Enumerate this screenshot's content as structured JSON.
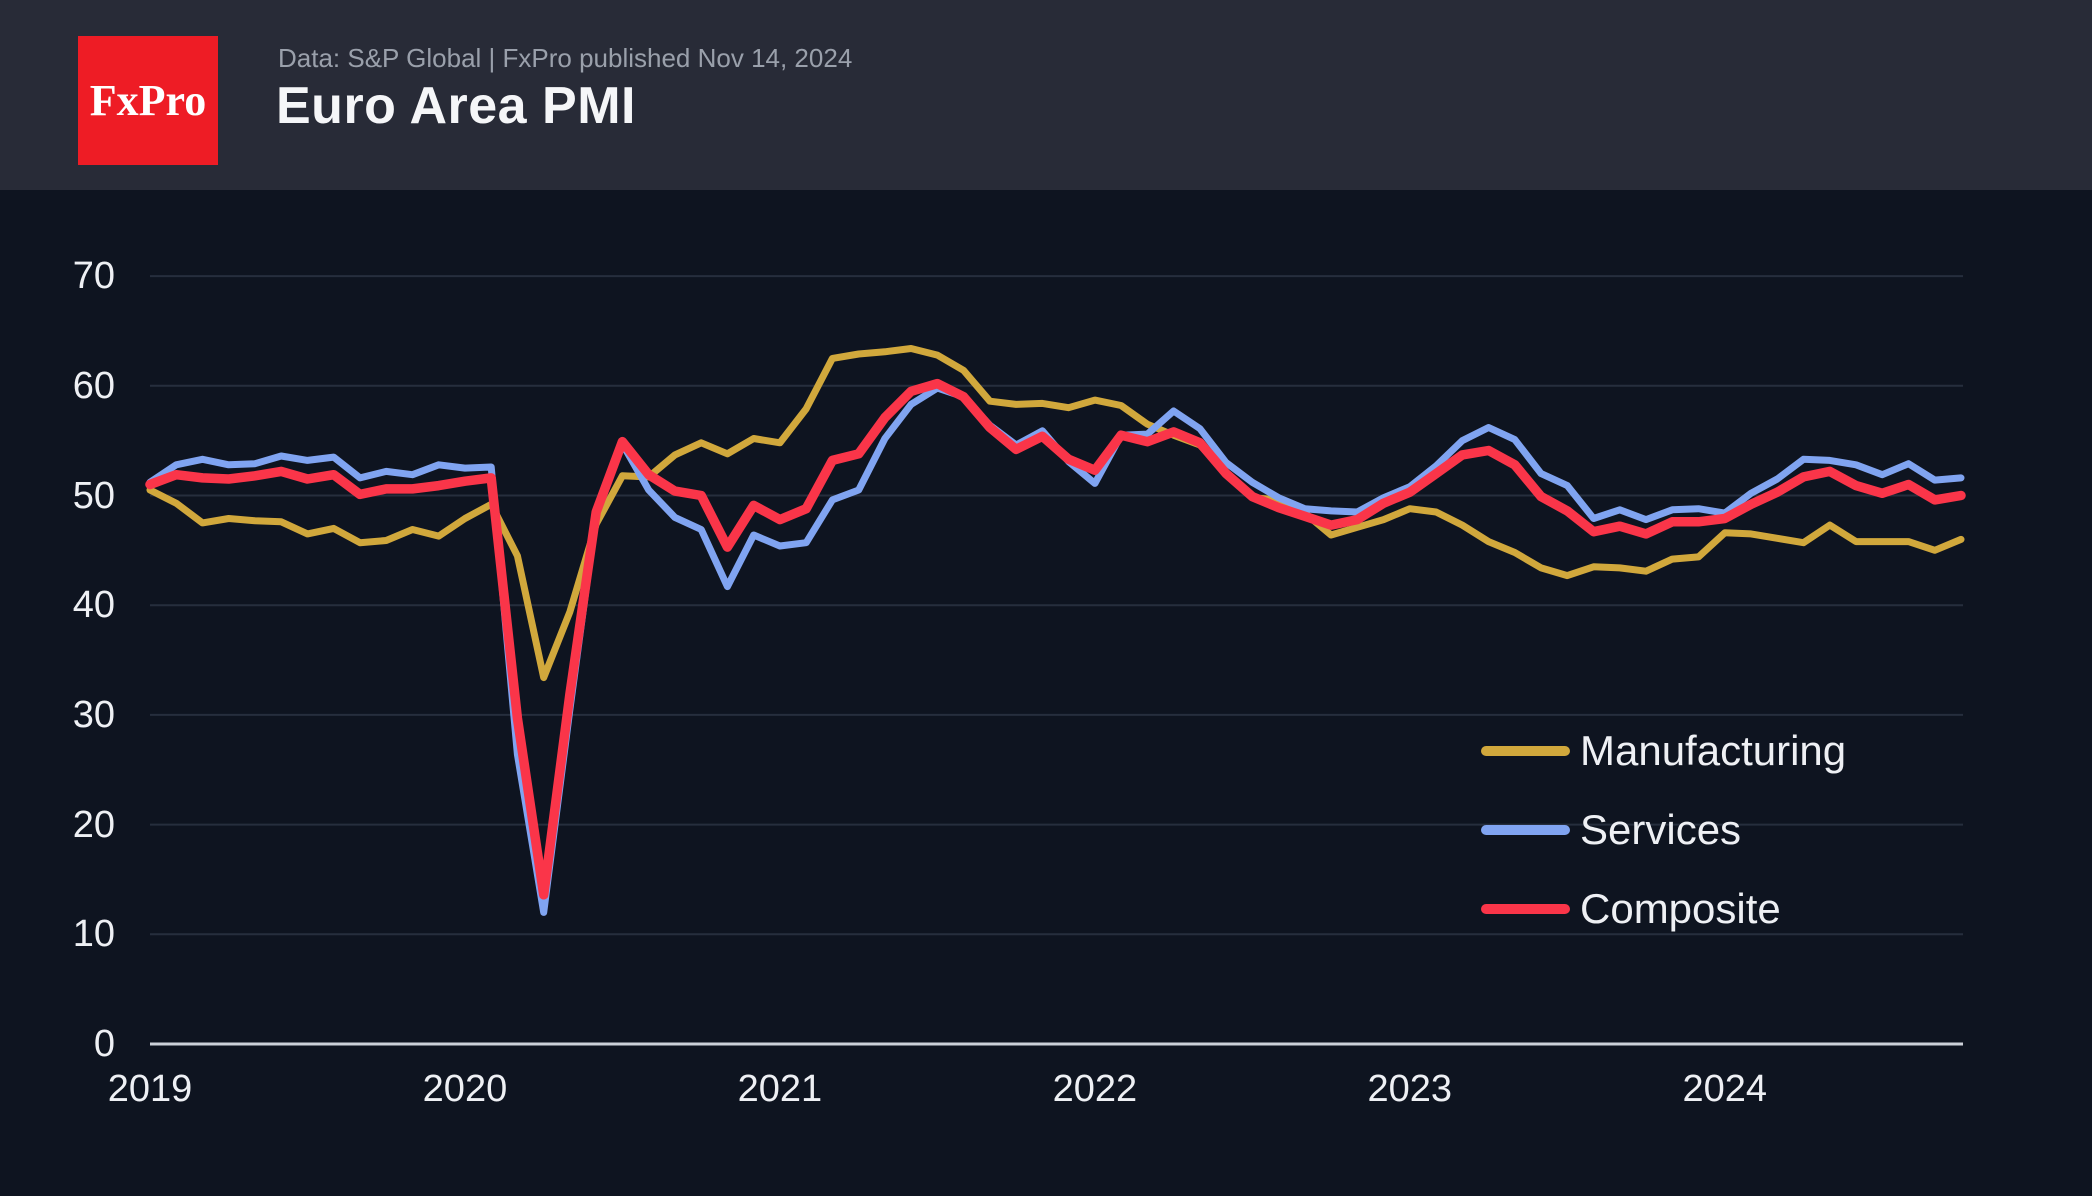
{
  "header": {
    "logo_text": "FxPro",
    "subtitle": "Data: S&P Global | FxPro published Nov 14, 2024",
    "title": "Euro Area PMI"
  },
  "colors": {
    "page_background": "#0e1420",
    "header_background": "#282b37",
    "logo_background": "#ee1c25",
    "logo_text": "#ffffff",
    "title_text": "#f5f6f8",
    "subtitle_text": "#9aa0ab",
    "axis_label_text": "#eef0f4",
    "gridline": "#262e3d",
    "zero_axis_line": "#ccd1d9"
  },
  "chart_data": {
    "type": "line",
    "title": "Euro Area PMI",
    "x_frequency": "monthly",
    "x_start": "2019-01",
    "x_end": "2024-10",
    "x_tick_labels": [
      "2019",
      "2020",
      "2021",
      "2022",
      "2023",
      "2024"
    ],
    "y_ticks": [
      0,
      10,
      20,
      30,
      40,
      50,
      60,
      70
    ],
    "ylim": [
      0,
      75
    ],
    "grid": "horizontal",
    "legend_position": "inside bottom-right",
    "series": [
      {
        "name": "Manufacturing",
        "color": "#d1a83c",
        "stroke_width": 7,
        "values": [
          50.5,
          49.3,
          47.5,
          47.9,
          47.7,
          47.6,
          46.5,
          47.0,
          45.7,
          45.9,
          46.9,
          46.3,
          47.9,
          49.2,
          44.5,
          33.4,
          39.4,
          47.4,
          51.8,
          51.7,
          53.7,
          54.8,
          53.8,
          55.2,
          54.8,
          57.9,
          62.5,
          62.9,
          63.1,
          63.4,
          62.8,
          61.4,
          58.6,
          58.3,
          58.4,
          58.0,
          58.7,
          58.2,
          56.5,
          55.5,
          54.6,
          52.1,
          49.8,
          49.6,
          48.4,
          46.4,
          47.1,
          47.8,
          48.8,
          48.5,
          47.3,
          45.8,
          44.8,
          43.4,
          42.7,
          43.5,
          43.4,
          43.1,
          44.2,
          44.4,
          46.6,
          46.5,
          46.1,
          45.7,
          47.3,
          45.8,
          45.8,
          45.8,
          45.0,
          46.0
        ]
      },
      {
        "name": "Services",
        "color": "#80a4f1",
        "stroke_width": 7,
        "values": [
          51.2,
          52.8,
          53.3,
          52.8,
          52.9,
          53.6,
          53.2,
          53.5,
          51.6,
          52.2,
          51.9,
          52.8,
          52.5,
          52.6,
          26.4,
          12.0,
          30.5,
          48.3,
          54.7,
          50.5,
          48.0,
          46.9,
          41.7,
          46.4,
          45.4,
          45.7,
          49.6,
          50.5,
          55.2,
          58.3,
          59.8,
          59.0,
          56.4,
          54.6,
          55.9,
          53.1,
          51.1,
          55.5,
          55.6,
          57.7,
          56.1,
          53.0,
          51.2,
          49.8,
          48.8,
          48.6,
          48.5,
          49.8,
          50.8,
          52.7,
          55.0,
          56.2,
          55.1,
          52.0,
          50.9,
          47.9,
          48.7,
          47.8,
          48.7,
          48.8,
          48.4,
          50.2,
          51.5,
          53.3,
          53.2,
          52.8,
          51.9,
          52.9,
          51.4,
          51.6
        ]
      },
      {
        "name": "Composite",
        "color": "#fa3549",
        "stroke_width": 9.5,
        "values": [
          51.0,
          51.9,
          51.6,
          51.5,
          51.8,
          52.2,
          51.5,
          51.9,
          50.1,
          50.6,
          50.6,
          50.9,
          51.3,
          51.6,
          29.7,
          13.6,
          31.9,
          48.5,
          54.9,
          51.9,
          50.4,
          50.0,
          45.3,
          49.1,
          47.8,
          48.8,
          53.2,
          53.8,
          57.1,
          59.5,
          60.2,
          59.0,
          56.2,
          54.2,
          55.4,
          53.3,
          52.3,
          55.5,
          54.9,
          55.8,
          54.8,
          52.0,
          49.9,
          48.9,
          48.1,
          47.3,
          47.8,
          49.3,
          50.3,
          52.0,
          53.7,
          54.1,
          52.8,
          49.9,
          48.6,
          46.7,
          47.2,
          46.5,
          47.6,
          47.6,
          47.9,
          49.2,
          50.3,
          51.7,
          52.2,
          50.9,
          50.2,
          51.0,
          49.6,
          50.0
        ]
      }
    ]
  }
}
